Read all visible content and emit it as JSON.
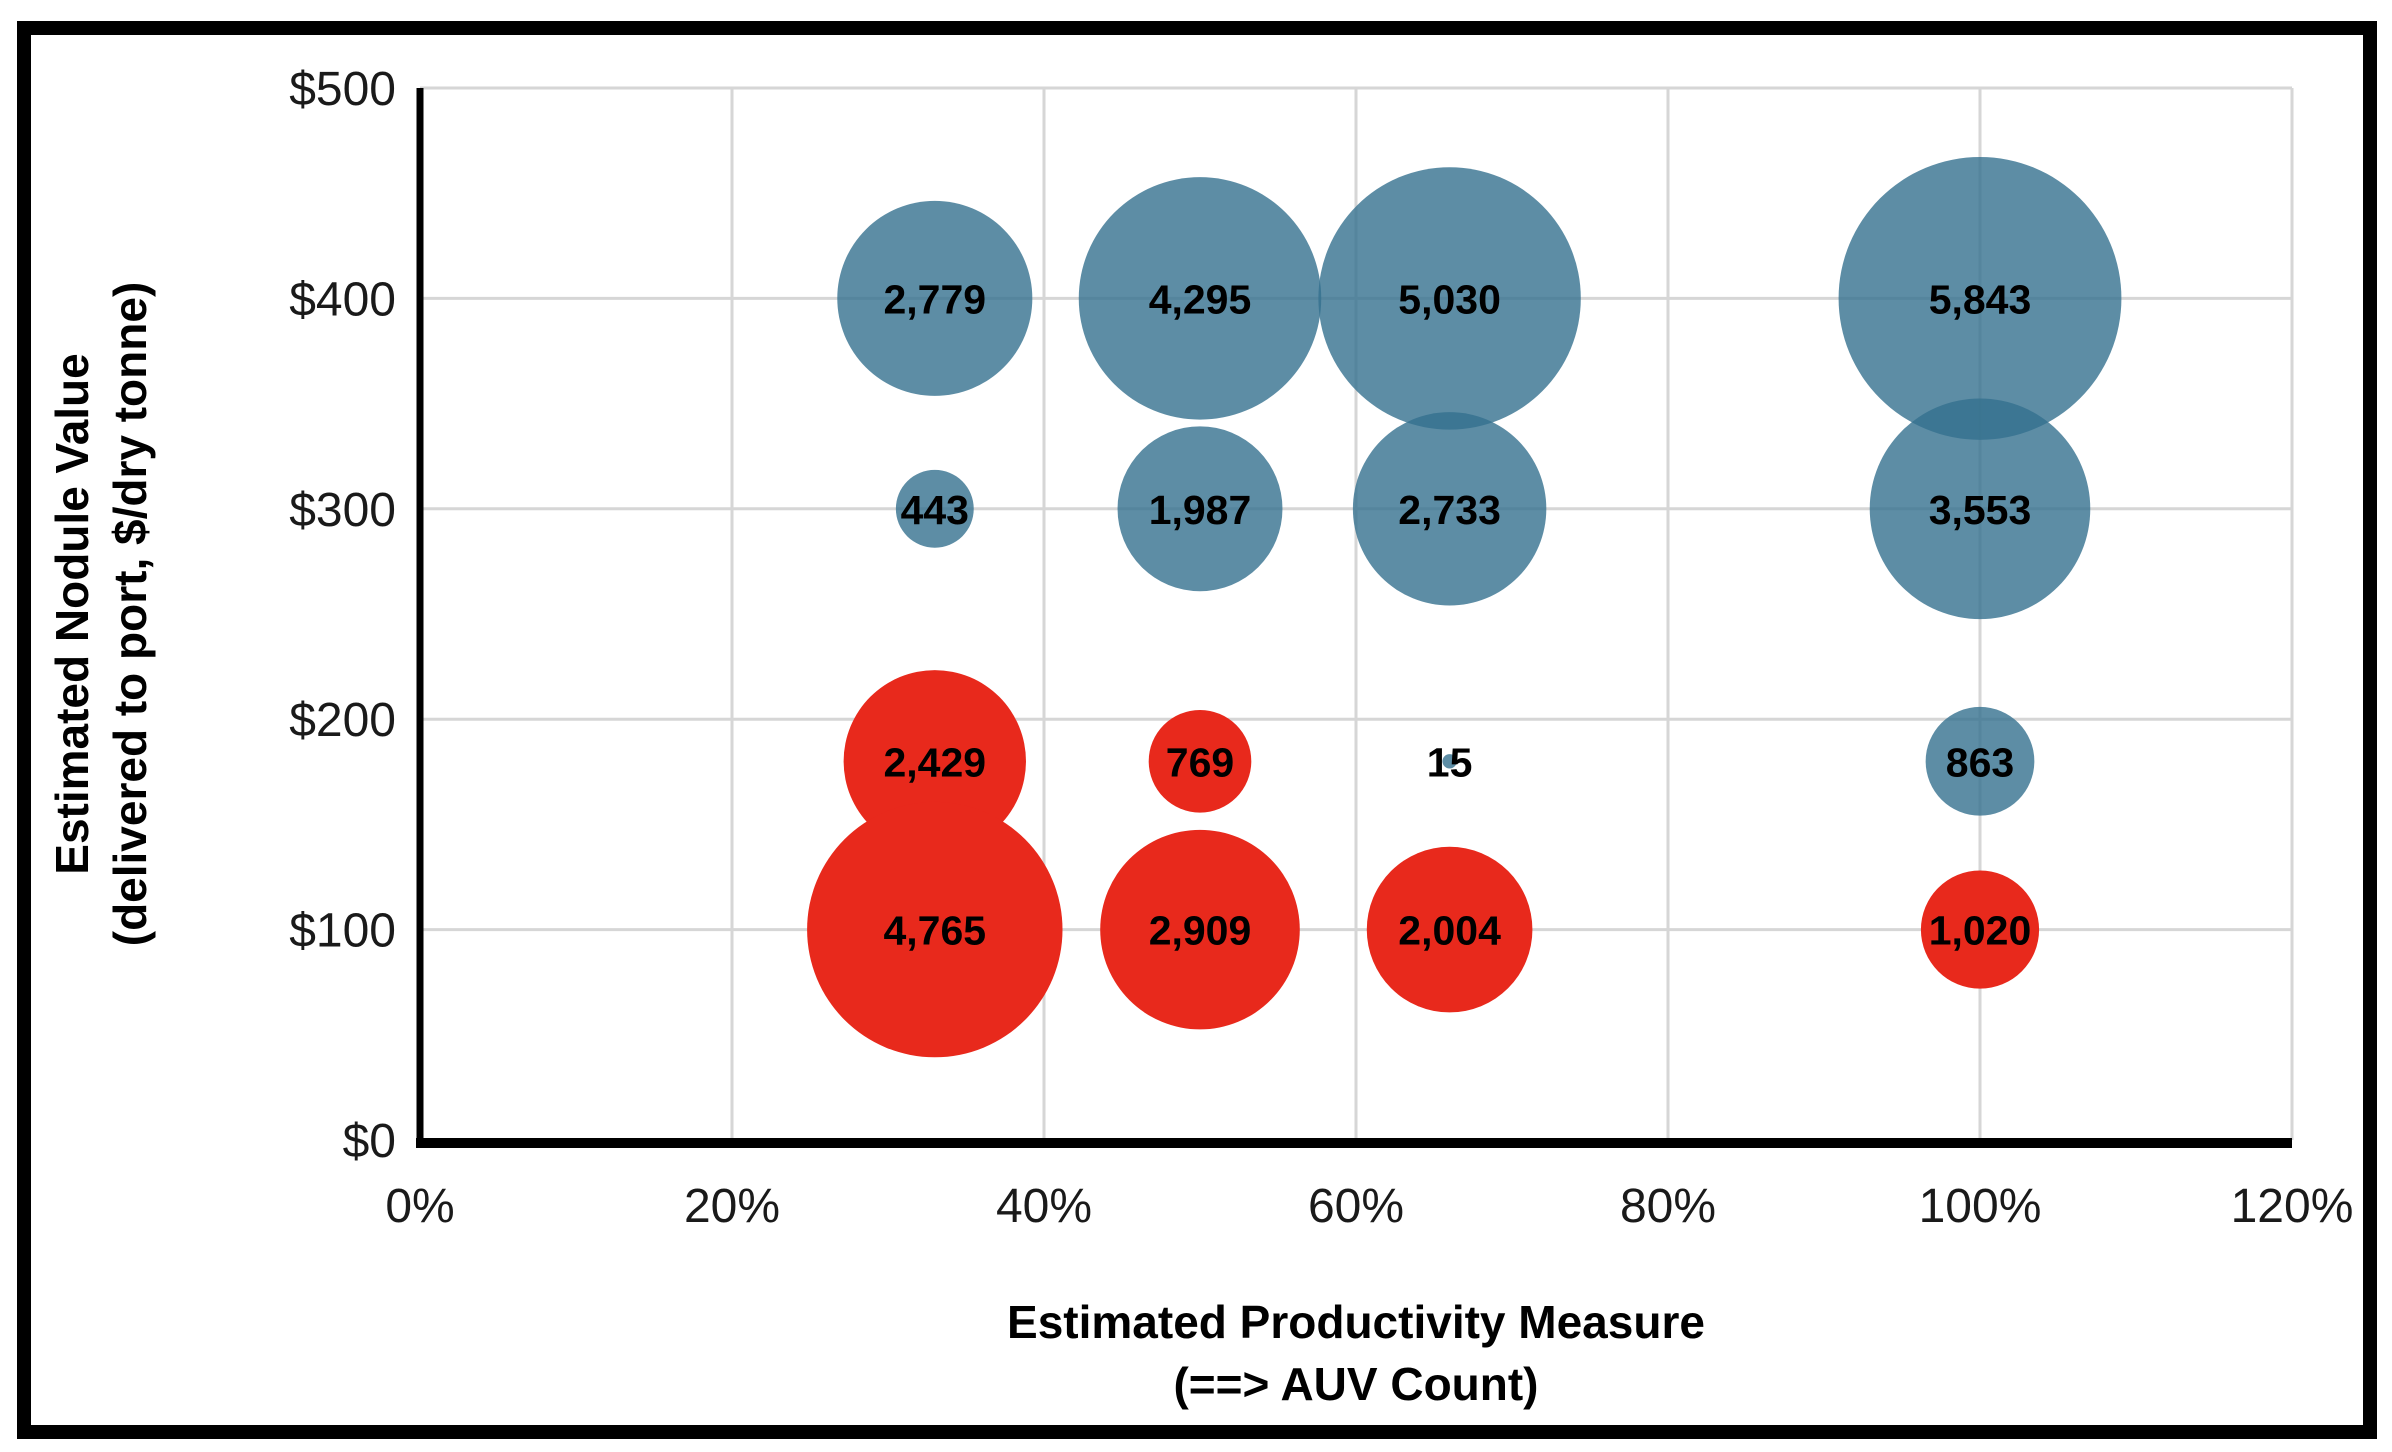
{
  "figure": {
    "background_color": "#FFFFFF",
    "border_color": "#000000",
    "gridline_color": "#D6D6D6",
    "axis_line_color": "#000000",
    "tick_text_color": "#1A1A1A"
  },
  "chart_data": {
    "type": "scatter",
    "subtype": "bubble",
    "title": "",
    "xlabel_line1": "Estimated Productivity Measure",
    "xlabel_line2": "(==> AUV Count)",
    "ylabel_line1": "Estimated Nodule Value",
    "ylabel_line2": "(delivered to port, $/dry tonne)",
    "xlim": [
      0,
      120
    ],
    "ylim": [
      0,
      500
    ],
    "x_tick_step_pct": 20,
    "y_tick_step_dollars": 100,
    "x_tick_labels": [
      "0%",
      "20%",
      "40%",
      "60%",
      "80%",
      "100%",
      "120%"
    ],
    "y_tick_labels": [
      "$0",
      "$100",
      "$200",
      "$300",
      "$400",
      "$500"
    ],
    "grid": true,
    "legend": "none",
    "bubble_area_proportional_to_value": true,
    "series": [
      {
        "name": "blue-bubbles",
        "color": "#35708E",
        "fill_opacity": 0.8,
        "points": [
          {
            "x_pct": 33,
            "y_dollars": 400,
            "value": 2779,
            "label": "2,779"
          },
          {
            "x_pct": 50,
            "y_dollars": 400,
            "value": 4295,
            "label": "4,295"
          },
          {
            "x_pct": 66,
            "y_dollars": 400,
            "value": 5030,
            "label": "5,030"
          },
          {
            "x_pct": 100,
            "y_dollars": 400,
            "value": 5843,
            "label": "5,843"
          },
          {
            "x_pct": 33,
            "y_dollars": 300,
            "value": 443,
            "label": "443"
          },
          {
            "x_pct": 50,
            "y_dollars": 300,
            "value": 1987,
            "label": "1,987"
          },
          {
            "x_pct": 66,
            "y_dollars": 300,
            "value": 2733,
            "label": "2,733"
          },
          {
            "x_pct": 100,
            "y_dollars": 300,
            "value": 3553,
            "label": "3,553"
          },
          {
            "x_pct": 66,
            "y_dollars": 180,
            "value": 15,
            "label": "15"
          },
          {
            "x_pct": 100,
            "y_dollars": 180,
            "value": 863,
            "label": "863"
          }
        ]
      },
      {
        "name": "red-bubbles",
        "color": "#E8291C",
        "fill_opacity": 1,
        "points": [
          {
            "x_pct": 33,
            "y_dollars": 180,
            "value": 2429,
            "label": "2,429"
          },
          {
            "x_pct": 50,
            "y_dollars": 180,
            "value": 769,
            "label": "769"
          },
          {
            "x_pct": 33,
            "y_dollars": 100,
            "value": 4765,
            "label": "4,765"
          },
          {
            "x_pct": 50,
            "y_dollars": 100,
            "value": 2909,
            "label": "2,909"
          },
          {
            "x_pct": 66,
            "y_dollars": 100,
            "value": 2004,
            "label": "2,004"
          },
          {
            "x_pct": 100,
            "y_dollars": 100,
            "value": 1020,
            "label": "1,020"
          }
        ]
      }
    ]
  }
}
